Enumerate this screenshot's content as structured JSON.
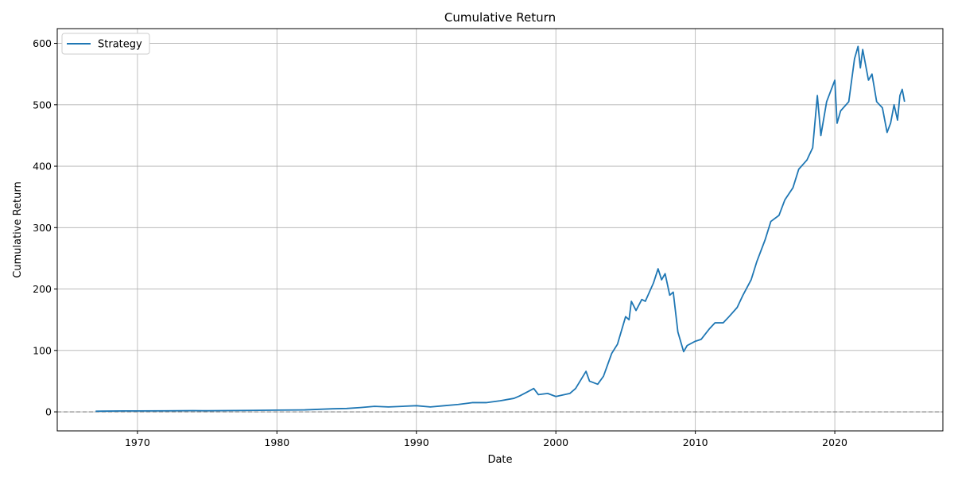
{
  "chart_data": {
    "type": "line",
    "title": "Cumulative Return",
    "xlabel": "Date",
    "ylabel": "Cumulative Return",
    "xlim": [
      "1964-04-01",
      "2027-10-01"
    ],
    "ylim": [
      -31,
      624
    ],
    "x_ticks": [
      {
        "date": "1970-01-01",
        "label": "1970"
      },
      {
        "date": "1980-01-01",
        "label": "1980"
      },
      {
        "date": "1990-01-01",
        "label": "1990"
      },
      {
        "date": "2000-01-01",
        "label": "2000"
      },
      {
        "date": "2010-01-01",
        "label": "2010"
      },
      {
        "date": "2020-01-01",
        "label": "2020"
      }
    ],
    "y_ticks": [
      0,
      100,
      200,
      300,
      400,
      500,
      600
    ],
    "grid": true,
    "legend": "top-left",
    "reference_line": {
      "y": 0,
      "style": "dashed",
      "color": "#808080"
    },
    "series": [
      {
        "name": "Strategy",
        "color": "#1f77b4",
        "points": [
          [
            "1967-01-01",
            1
          ],
          [
            "1969-01-01",
            1.5
          ],
          [
            "1970-01-01",
            1.5
          ],
          [
            "1972-01-01",
            1.7
          ],
          [
            "1974-01-01",
            2
          ],
          [
            "1975-01-01",
            1.8
          ],
          [
            "1978-01-01",
            2.3
          ],
          [
            "1980-01-01",
            2.8
          ],
          [
            "1982-01-01",
            3.2
          ],
          [
            "1984-01-01",
            5
          ],
          [
            "1985-01-01",
            5.5
          ],
          [
            "1986-01-01",
            7
          ],
          [
            "1987-01-01",
            9
          ],
          [
            "1988-01-01",
            8
          ],
          [
            "1989-01-01",
            9
          ],
          [
            "1990-01-01",
            10
          ],
          [
            "1991-01-01",
            8
          ],
          [
            "1992-01-01",
            10
          ],
          [
            "1993-01-01",
            12
          ],
          [
            "1994-01-01",
            15
          ],
          [
            "1995-01-01",
            15
          ],
          [
            "1996-01-01",
            18
          ],
          [
            "1997-01-01",
            22
          ],
          [
            "1997-06-01",
            26
          ],
          [
            "1998-01-01",
            33
          ],
          [
            "1998-06-01",
            38
          ],
          [
            "1998-10-01",
            28
          ],
          [
            "1999-06-01",
            30
          ],
          [
            "2000-01-01",
            25
          ],
          [
            "2001-01-01",
            30
          ],
          [
            "2001-06-01",
            38
          ],
          [
            "2002-03-01",
            66
          ],
          [
            "2002-06-01",
            50
          ],
          [
            "2003-01-01",
            45
          ],
          [
            "2003-06-01",
            58
          ],
          [
            "2004-01-01",
            95
          ],
          [
            "2004-06-01",
            110
          ],
          [
            "2005-01-01",
            155
          ],
          [
            "2005-04-01",
            150
          ],
          [
            "2005-06-01",
            180
          ],
          [
            "2005-10-01",
            165
          ],
          [
            "2006-03-01",
            183
          ],
          [
            "2006-06-01",
            180
          ],
          [
            "2007-01-01",
            210
          ],
          [
            "2007-05-01",
            233
          ],
          [
            "2007-08-01",
            215
          ],
          [
            "2007-11-01",
            225
          ],
          [
            "2008-03-01",
            190
          ],
          [
            "2008-06-01",
            195
          ],
          [
            "2008-10-01",
            130
          ],
          [
            "2009-03-01",
            98
          ],
          [
            "2009-06-01",
            108
          ],
          [
            "2010-01-01",
            115
          ],
          [
            "2010-06-01",
            118
          ],
          [
            "2011-01-01",
            135
          ],
          [
            "2011-06-01",
            145
          ],
          [
            "2012-01-01",
            145
          ],
          [
            "2012-06-01",
            155
          ],
          [
            "2013-01-01",
            170
          ],
          [
            "2013-06-01",
            190
          ],
          [
            "2014-01-01",
            215
          ],
          [
            "2014-06-01",
            245
          ],
          [
            "2015-01-01",
            280
          ],
          [
            "2015-06-01",
            310
          ],
          [
            "2016-01-01",
            320
          ],
          [
            "2016-06-01",
            345
          ],
          [
            "2017-01-01",
            365
          ],
          [
            "2017-06-01",
            395
          ],
          [
            "2018-01-01",
            410
          ],
          [
            "2018-06-01",
            430
          ],
          [
            "2018-10-01",
            515
          ],
          [
            "2019-01-01",
            450
          ],
          [
            "2019-06-01",
            505
          ],
          [
            "2020-01-01",
            540
          ],
          [
            "2020-03-01",
            470
          ],
          [
            "2020-06-01",
            490
          ],
          [
            "2021-01-01",
            505
          ],
          [
            "2021-06-01",
            575
          ],
          [
            "2021-09-01",
            595
          ],
          [
            "2021-11-01",
            560
          ],
          [
            "2022-01-01",
            590
          ],
          [
            "2022-06-01",
            540
          ],
          [
            "2022-09-01",
            550
          ],
          [
            "2023-01-01",
            505
          ],
          [
            "2023-06-01",
            495
          ],
          [
            "2023-10-01",
            455
          ],
          [
            "2024-01-01",
            470
          ],
          [
            "2024-04-01",
            500
          ],
          [
            "2024-07-01",
            475
          ],
          [
            "2024-09-01",
            515
          ],
          [
            "2024-11-01",
            525
          ],
          [
            "2025-01-01",
            505
          ]
        ]
      }
    ]
  }
}
